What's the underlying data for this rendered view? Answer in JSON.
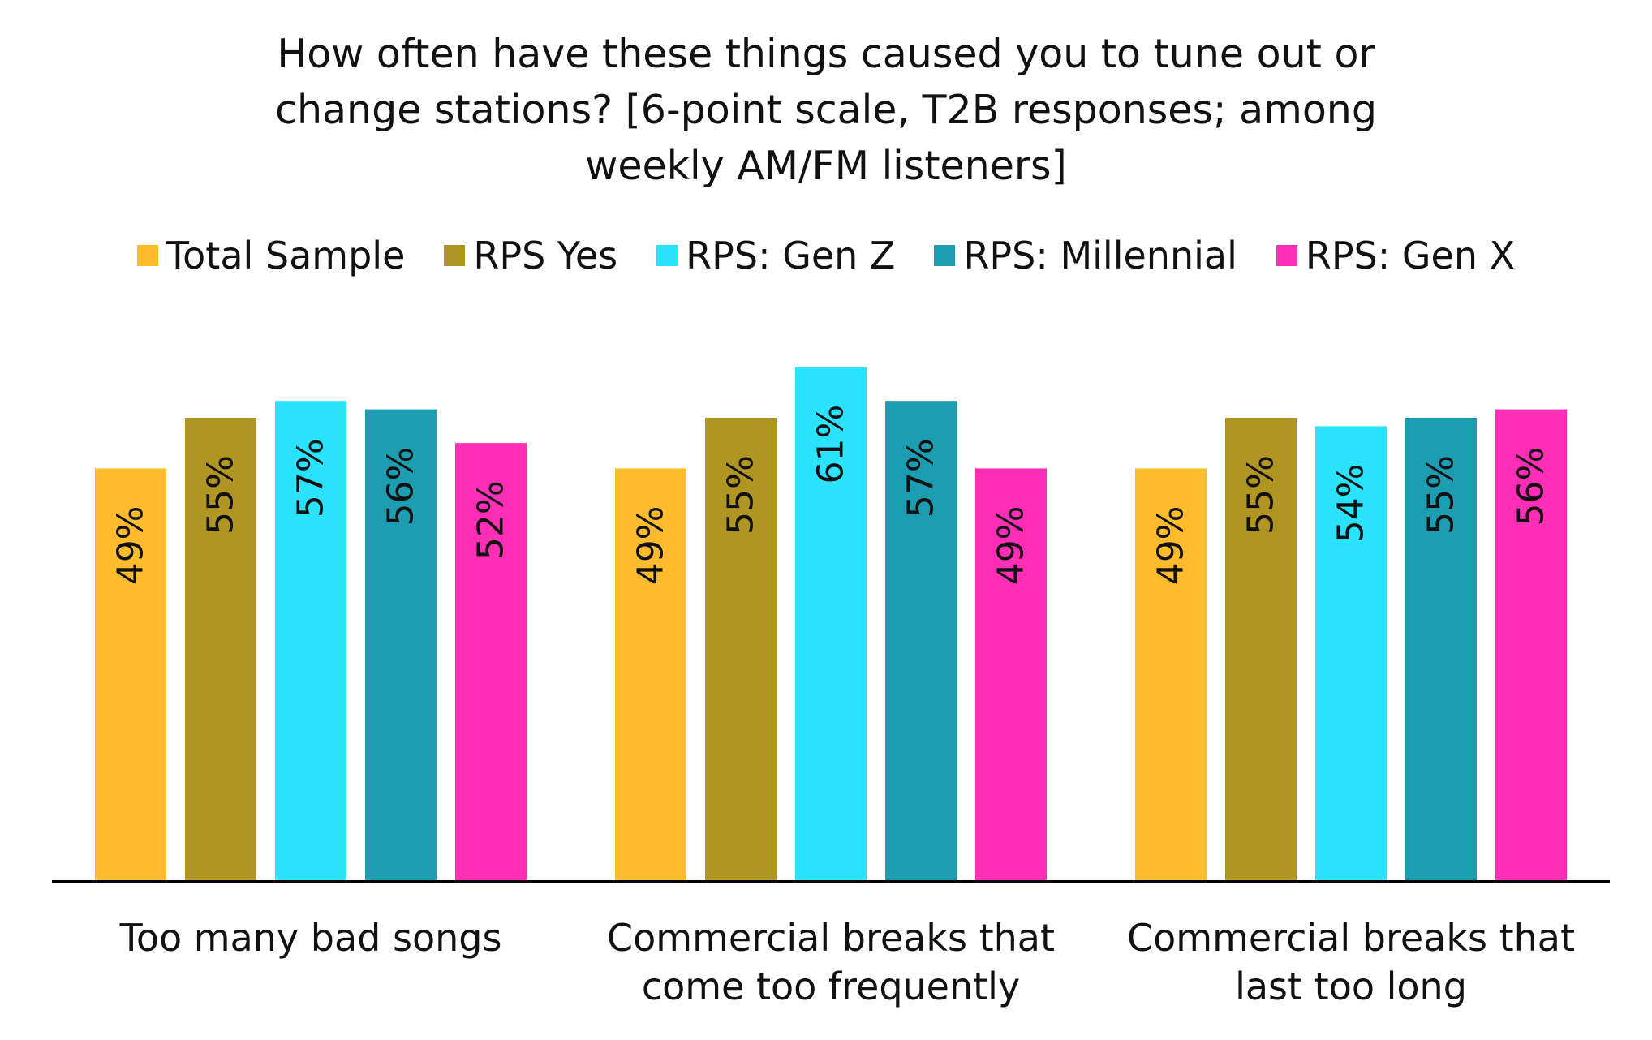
{
  "chart_data": {
    "type": "bar",
    "title": [
      "How often have these things caused you to tune out or",
      "change stations? [6-point scale, T2B responses; among",
      "weekly AM/FM listeners]"
    ],
    "categories": [
      [
        "Too many bad songs"
      ],
      [
        "Commercial breaks that",
        "come too frequently"
      ],
      [
        "Commercial breaks that",
        "last too long"
      ]
    ],
    "series": [
      {
        "name": "Total Sample",
        "color": "#FDBB2D",
        "values": [
          49,
          49,
          49
        ],
        "labels": [
          "49%",
          "49%",
          "49%"
        ]
      },
      {
        "name": "RPS Yes",
        "color": "#B09522",
        "values": [
          55,
          55,
          55
        ],
        "labels": [
          "55%",
          "55%",
          "55%"
        ]
      },
      {
        "name": "RPS: Gen Z",
        "color": "#2AE2FC",
        "values": [
          57,
          61,
          54
        ],
        "labels": [
          "57%",
          "61%",
          "54%"
        ]
      },
      {
        "name": "RPS: Millennial",
        "color": "#1C9DB1",
        "values": [
          56,
          57,
          55
        ],
        "labels": [
          "56%",
          "57%",
          "55%"
        ]
      },
      {
        "name": "RPS: Gen X",
        "color": "#FE2EB7",
        "values": [
          52,
          49,
          56
        ],
        "labels": [
          "52%",
          "49%",
          "56%"
        ]
      }
    ],
    "ylim": [
      0,
      100
    ],
    "legend_position": "top",
    "grid": false,
    "data_labels": "inside-end-rotated"
  }
}
